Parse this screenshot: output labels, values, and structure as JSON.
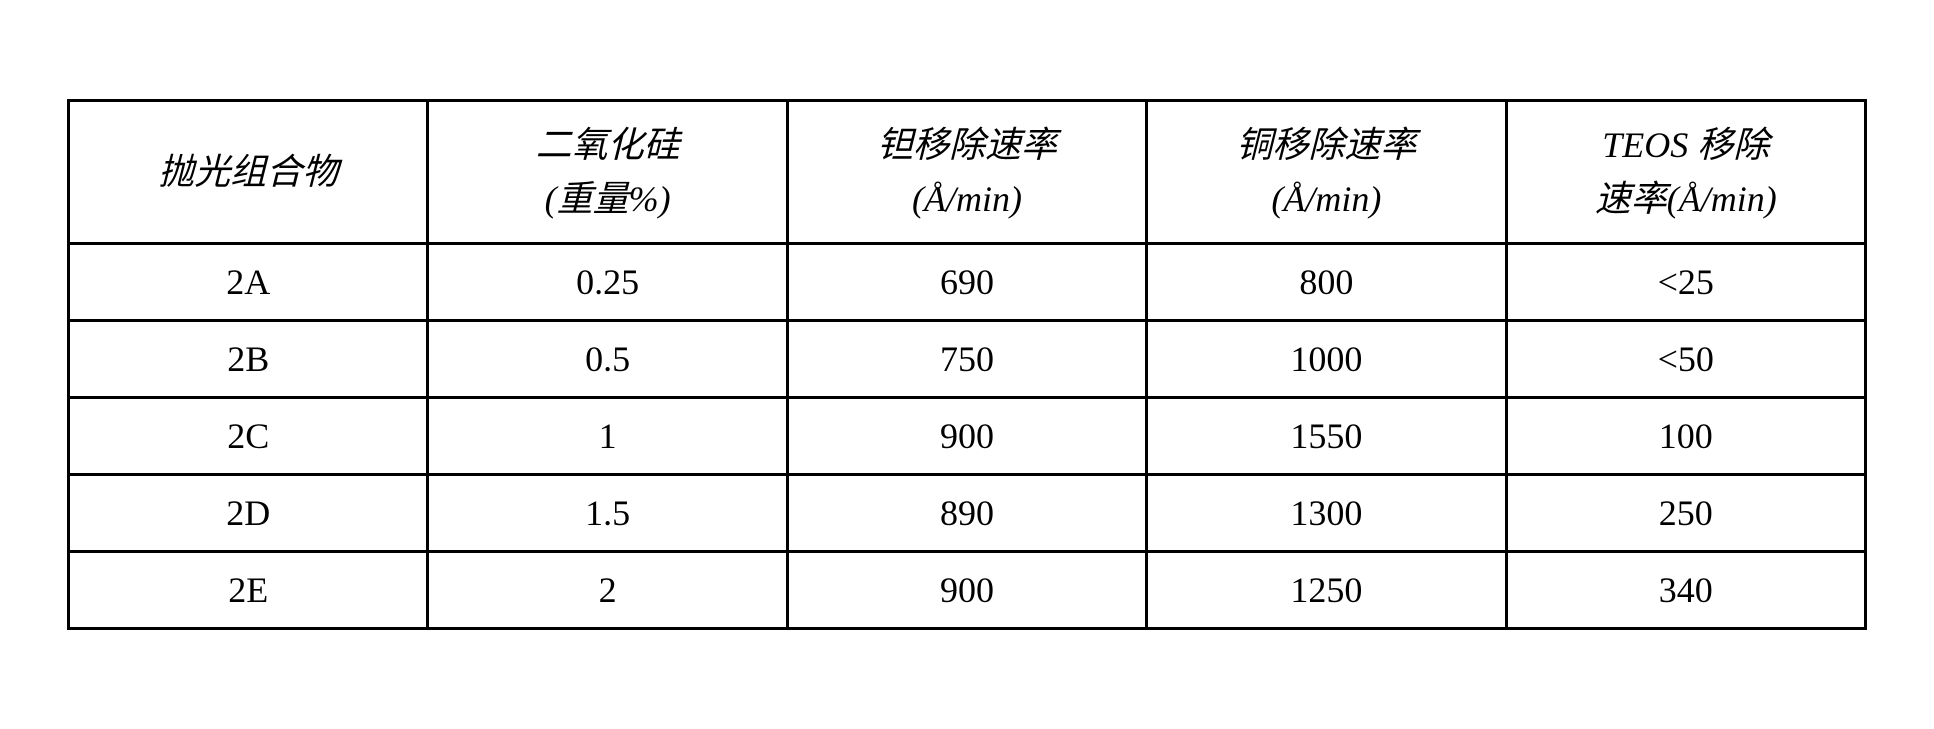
{
  "table": {
    "type": "table",
    "columns": [
      {
        "header": "抛光组合物",
        "width": "20%"
      },
      {
        "header_line1": "二氧化硅",
        "header_line2": "(重量%)",
        "width": "20%"
      },
      {
        "header_line1": "钽移除速率",
        "header_line2": "(Å/min)",
        "width": "20%"
      },
      {
        "header_line1": "铜移除速率",
        "header_line2": "(Å/min)",
        "width": "20%"
      },
      {
        "header_line1": "TEOS 移除",
        "header_line2": "速率(Å/min)",
        "width": "20%"
      }
    ],
    "rows": [
      [
        "2A",
        "0.25",
        "690",
        "800",
        "<25"
      ],
      [
        "2B",
        "0.5",
        "750",
        "1000",
        "<50"
      ],
      [
        "2C",
        "1",
        "900",
        "1550",
        "100"
      ],
      [
        "2D",
        "1.5",
        "890",
        "1300",
        "250"
      ],
      [
        "2E",
        "2",
        "900",
        "1250",
        "340"
      ]
    ],
    "border_color": "#000000",
    "background_color": "#ffffff",
    "text_color": "#000000",
    "font_size": 36,
    "border_width": 3
  }
}
